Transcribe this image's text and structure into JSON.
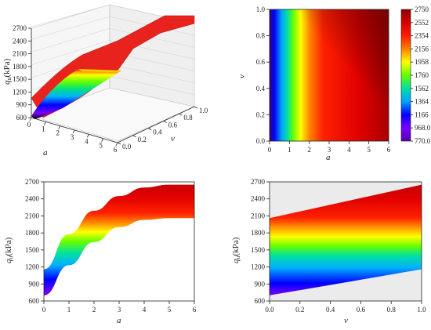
{
  "chart_data": [
    {
      "type": "surface3d",
      "panel": "top-left",
      "zlabel_main": "q",
      "zlabel_sub": "u",
      "zlabel_unit": "(kPa)",
      "xlabel": "a",
      "ylabel": "v",
      "xlim": [
        0,
        6
      ],
      "ylim": [
        0,
        1
      ],
      "zlim": [
        600,
        2700
      ],
      "x_ticks": [
        "0",
        "1",
        "2",
        "3",
        "4",
        "5",
        "6"
      ],
      "y_ticks": [
        "0.0",
        "0.2",
        "0.4",
        "0.6",
        "0.8",
        "1.0"
      ],
      "z_ticks": [
        "600",
        "900",
        "1200",
        "1500",
        "1800",
        "2100",
        "2400",
        "2700"
      ],
      "corner_values": [
        {
          "a": 0,
          "v": 0,
          "qu": 700
        },
        {
          "a": 0,
          "v": 1,
          "qu": 1160
        },
        {
          "a": 6,
          "v": 0,
          "qu": 2060
        },
        {
          "a": 6,
          "v": 1,
          "qu": 2650
        }
      ]
    },
    {
      "type": "heatmap",
      "panel": "top-right",
      "xlabel": "a",
      "ylabel": "v",
      "xlim": [
        0,
        6
      ],
      "ylim": [
        0,
        1
      ],
      "x_ticks": [
        "0",
        "1",
        "2",
        "3",
        "4",
        "5",
        "6"
      ],
      "y_ticks": [
        "0.0",
        "0.2",
        "0.4",
        "0.6",
        "0.8",
        "1.0"
      ],
      "colorbar_ticks": [
        "2750",
        "2552",
        "2354",
        "2156",
        "1958",
        "1760",
        "1562",
        "1364",
        "1166",
        "968.0",
        "770.0"
      ],
      "colorbar_range": [
        770,
        2750
      ]
    },
    {
      "type": "area",
      "panel": "bottom-left",
      "ylabel_main": "q",
      "ylabel_sub": "u",
      "ylabel_unit": "(kPa)",
      "xlabel": "a",
      "xlim": [
        0,
        6
      ],
      "ylim": [
        600,
        2700
      ],
      "x_ticks": [
        "0",
        "1",
        "2",
        "3",
        "4",
        "5",
        "6"
      ],
      "y_ticks": [
        "600",
        "900",
        "1200",
        "1500",
        "1800",
        "2100",
        "2400",
        "2700"
      ],
      "band_lower": {
        "x": [
          0,
          1,
          2,
          3,
          4,
          5,
          6
        ],
        "y": [
          700,
          1230,
          1640,
          1900,
          2030,
          2060,
          2060
        ]
      },
      "band_upper": {
        "x": [
          0,
          1,
          2,
          3,
          4,
          5,
          6
        ],
        "y": [
          1160,
          1780,
          2190,
          2450,
          2600,
          2650,
          2650
        ]
      }
    },
    {
      "type": "area",
      "panel": "bottom-right",
      "ylabel_main": "q",
      "ylabel_sub": "u",
      "ylabel_unit": "(kPa)",
      "xlabel": "v",
      "xlim": [
        0,
        1
      ],
      "ylim": [
        600,
        2700
      ],
      "x_ticks": [
        "0.0",
        "0.2",
        "0.4",
        "0.6",
        "0.8",
        "1.0"
      ],
      "y_ticks": [
        "600",
        "900",
        "1200",
        "1500",
        "1800",
        "2100",
        "2400",
        "2700"
      ],
      "band_lower": {
        "x": [
          0,
          1
        ],
        "y": [
          700,
          1160
        ]
      },
      "band_upper": {
        "x": [
          0,
          1
        ],
        "y": [
          2060,
          2650
        ]
      },
      "background": "#ebebeb"
    }
  ],
  "colors": {
    "colormap": [
      "#000000",
      "#5500aa",
      "#7a00ff",
      "#0000ff",
      "#00b0ff",
      "#00e0a0",
      "#66ff00",
      "#ffff00",
      "#ffaa00",
      "#ff3300",
      "#e60000",
      "#8b0000"
    ],
    "surface_red": "#e8231e"
  }
}
